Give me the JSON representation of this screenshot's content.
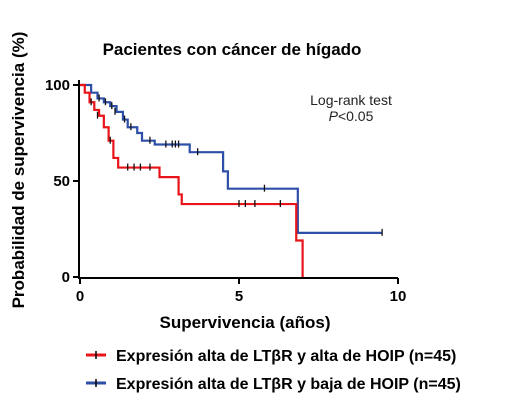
{
  "chart_data": {
    "type": "line",
    "title": "Pacientes con cáncer de hígado",
    "xlabel": "Supervivencia (años)",
    "ylabel": "Probabilidad de supervivencia (%)",
    "xlim": [
      0,
      10
    ],
    "ylim": [
      0,
      100
    ],
    "xticks": [
      0,
      5,
      10
    ],
    "yticks": [
      0,
      50,
      100
    ],
    "grid": false,
    "legend_position": "bottom",
    "annotation": {
      "line1": "Log-rank test",
      "line2_italic": "P",
      "line2_rest": "<0.05"
    },
    "series": [
      {
        "name": "Expresión alta de LTβR y alta de HOIP (n=45)",
        "color": "#e8141a",
        "steps": [
          [
            0,
            100
          ],
          [
            0.15,
            96
          ],
          [
            0.3,
            91
          ],
          [
            0.45,
            87
          ],
          [
            0.6,
            84
          ],
          [
            0.75,
            78
          ],
          [
            0.9,
            71
          ],
          [
            1.05,
            62
          ],
          [
            1.2,
            57
          ],
          [
            1.5,
            57
          ],
          [
            2.4,
            57
          ],
          [
            2.5,
            52
          ],
          [
            2.9,
            52
          ],
          [
            3.1,
            43
          ],
          [
            3.2,
            38
          ],
          [
            5.6,
            38
          ],
          [
            6.8,
            38
          ],
          [
            6.8,
            19
          ],
          [
            7.0,
            19
          ],
          [
            7.0,
            0
          ]
        ],
        "censored": [
          [
            0.35,
            91
          ],
          [
            0.55,
            84
          ],
          [
            0.95,
            71
          ],
          [
            1.5,
            57
          ],
          [
            1.7,
            57
          ],
          [
            1.9,
            57
          ],
          [
            2.2,
            57
          ],
          [
            5.0,
            38
          ],
          [
            5.2,
            38
          ],
          [
            5.5,
            38
          ],
          [
            6.3,
            38
          ]
        ]
      },
      {
        "name": "Expresión alta de LTβR y baja de HOIP (n=45)",
        "color": "#2e4fa8",
        "steps": [
          [
            0,
            100
          ],
          [
            0.2,
            100
          ],
          [
            0.35,
            96
          ],
          [
            0.55,
            93
          ],
          [
            0.75,
            91
          ],
          [
            0.95,
            89
          ],
          [
            1.15,
            86
          ],
          [
            1.35,
            82
          ],
          [
            1.5,
            78
          ],
          [
            1.8,
            75
          ],
          [
            1.95,
            71
          ],
          [
            2.15,
            71
          ],
          [
            2.35,
            69
          ],
          [
            2.55,
            69
          ],
          [
            2.75,
            69
          ],
          [
            3.35,
            69
          ],
          [
            3.45,
            65
          ],
          [
            4.45,
            65
          ],
          [
            4.5,
            55
          ],
          [
            4.65,
            46
          ],
          [
            6.8,
            46
          ],
          [
            6.85,
            23
          ],
          [
            9.5,
            23
          ]
        ],
        "censored": [
          [
            0.6,
            93
          ],
          [
            0.8,
            91
          ],
          [
            1.0,
            89
          ],
          [
            1.1,
            86
          ],
          [
            1.4,
            82
          ],
          [
            1.6,
            78
          ],
          [
            2.2,
            71
          ],
          [
            2.7,
            69
          ],
          [
            2.9,
            69
          ],
          [
            3.0,
            69
          ],
          [
            3.1,
            69
          ],
          [
            3.7,
            65
          ],
          [
            5.8,
            46
          ],
          [
            9.5,
            23
          ]
        ]
      }
    ]
  }
}
